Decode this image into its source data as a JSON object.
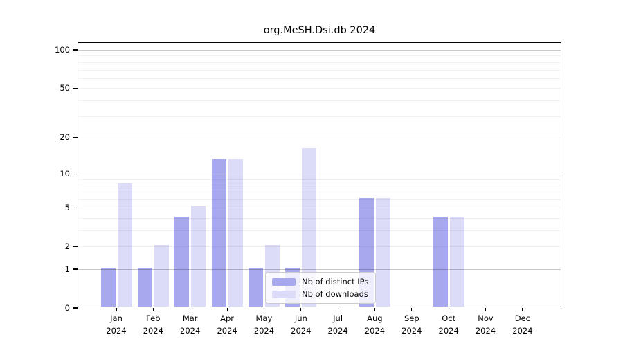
{
  "chart_data": {
    "type": "bar",
    "title": "org.MeSH.Dsi.db 2024",
    "x_year_label": "2024",
    "categories": [
      "Jan",
      "Feb",
      "Mar",
      "Apr",
      "May",
      "Jun",
      "Jul",
      "Aug",
      "Sep",
      "Oct",
      "Nov",
      "Dec"
    ],
    "series": [
      {
        "name": "Nb of distinct IPs",
        "color": "#a8a8ee",
        "values": [
          1,
          1,
          4,
          13,
          1,
          1,
          0,
          6,
          0,
          4,
          0,
          0
        ]
      },
      {
        "name": "Nb of downloads",
        "color": "#dcdcf9",
        "values": [
          8,
          2,
          5,
          13,
          2,
          16,
          0,
          6,
          0,
          4,
          0,
          0
        ]
      }
    ],
    "yscale": "log1p",
    "ylim": [
      0,
      113
    ],
    "yticks": [
      0,
      1,
      2,
      5,
      10,
      20,
      50,
      100
    ],
    "grid_on": true,
    "grid_major": [
      1,
      10,
      100
    ],
    "grid_minor": [
      2,
      3,
      4,
      5,
      6,
      7,
      8,
      9,
      20,
      30,
      40,
      50,
      60,
      70,
      80,
      90
    ],
    "legend_position": "lower center",
    "xlabel": "",
    "ylabel": ""
  },
  "colors": {
    "background": "#ffffff",
    "axis": "#000000",
    "text": "#000000",
    "series_ips": "#a8a8ee",
    "series_downloads": "#dcdcf9",
    "legend_border": "#cccccc"
  }
}
